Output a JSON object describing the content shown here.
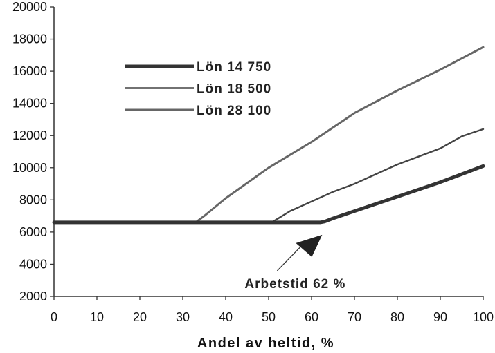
{
  "chart_data": {
    "type": "line",
    "xlabel": "Andel av heltid, %",
    "ylabel": "",
    "xlim": [
      0,
      100
    ],
    "ylim": [
      2000,
      20000
    ],
    "x_ticks": [
      "0",
      "10",
      "20",
      "30",
      "40",
      "50",
      "60",
      "70",
      "80",
      "90",
      "100"
    ],
    "y_ticks": [
      "2000",
      "4000",
      "6000",
      "8000",
      "10000",
      "12000",
      "14000",
      "16000",
      "18000",
      "20000"
    ],
    "grid": false,
    "legend_position": "upper-left",
    "series": [
      {
        "name": "Lön 14 750",
        "color": "#333333",
        "style": "thick",
        "x": [
          0,
          10,
          20,
          30,
          40,
          50,
          60,
          62,
          63,
          65,
          70,
          80,
          90,
          95,
          100
        ],
        "y": [
          6600,
          6600,
          6600,
          6600,
          6600,
          6600,
          6600,
          6600,
          6650,
          6850,
          7300,
          8200,
          9100,
          9600,
          10100
        ]
      },
      {
        "name": "Lön 18 500",
        "color": "#444444",
        "style": "medium",
        "x": [
          0,
          10,
          20,
          30,
          40,
          50,
          51,
          55,
          60,
          65,
          70,
          80,
          90,
          95,
          100
        ],
        "y": [
          6600,
          6600,
          6600,
          6600,
          6600,
          6600,
          6650,
          7300,
          7900,
          8500,
          9000,
          10200,
          11200,
          11950,
          12400
        ]
      },
      {
        "name": "Lön 28 100",
        "color": "#666666",
        "style": "thin",
        "x": [
          0,
          10,
          20,
          30,
          33,
          35,
          40,
          50,
          60,
          70,
          80,
          90,
          100
        ],
        "y": [
          6600,
          6600,
          6600,
          6600,
          6600,
          7000,
          8100,
          10000,
          11600,
          13400,
          14800,
          16100,
          17500
        ]
      }
    ],
    "annotation": {
      "text": "Arbetstid 62 %",
      "x": 62,
      "y": 6600
    }
  }
}
